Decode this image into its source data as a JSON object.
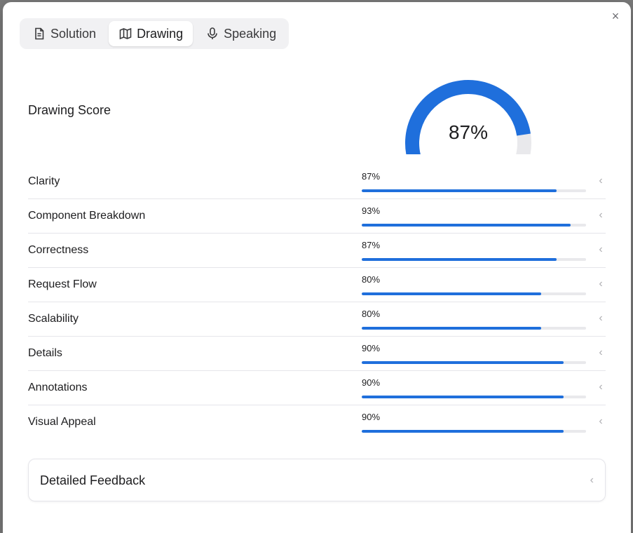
{
  "tabs": [
    {
      "label": "Solution",
      "icon": "document-icon",
      "active": false
    },
    {
      "label": "Drawing",
      "icon": "map-icon",
      "active": true
    },
    {
      "label": "Speaking",
      "icon": "microphone-icon",
      "active": false
    }
  ],
  "close_icon": "×",
  "score": {
    "title": "Drawing Score",
    "value": "87%",
    "fraction": 0.87,
    "accent": "#1f6fdc",
    "track": "#e9e9ec"
  },
  "criteria": [
    {
      "label": "Clarity",
      "pct": "87%",
      "value": 0.87
    },
    {
      "label": "Component Breakdown",
      "pct": "93%",
      "value": 0.93
    },
    {
      "label": "Correctness",
      "pct": "87%",
      "value": 0.87
    },
    {
      "label": "Request Flow",
      "pct": "80%",
      "value": 0.8
    },
    {
      "label": "Scalability",
      "pct": "80%",
      "value": 0.8
    },
    {
      "label": "Details",
      "pct": "90%",
      "value": 0.9
    },
    {
      "label": "Annotations",
      "pct": "90%",
      "value": 0.9
    },
    {
      "label": "Visual Appeal",
      "pct": "90%",
      "value": 0.9
    }
  ],
  "chevron": "‹",
  "feedback": {
    "label": "Detailed Feedback"
  }
}
